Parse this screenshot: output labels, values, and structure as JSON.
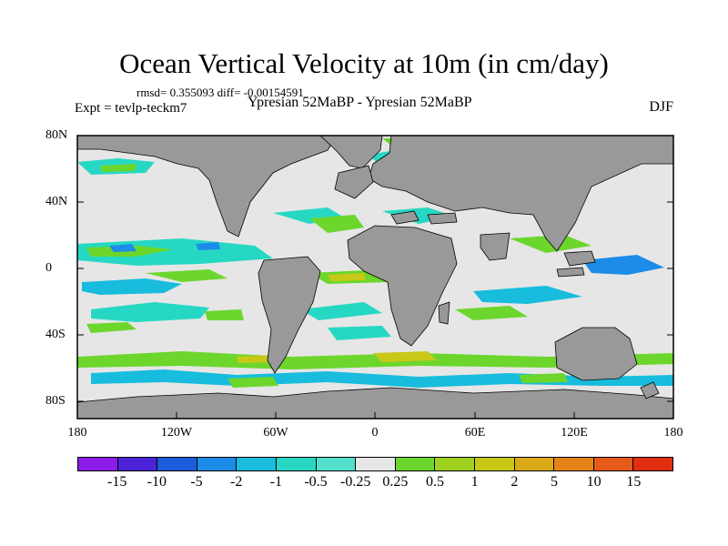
{
  "title": "Ocean Vertical Velocity at 10m (in cm/day)",
  "stats": "rmsd= 0.355093 diff= -0.00154591",
  "experiment": "Expt = tevlp-teckm7",
  "subtitle": "Ypresian  52MaBP - Ypresian  52MaBP",
  "season": "DJF",
  "y_axis": {
    "ticks": [
      "80N",
      "40N",
      "0",
      "40S",
      "80S"
    ]
  },
  "x_axis": {
    "ticks": [
      "180",
      "120W",
      "60W",
      "0",
      "60E",
      "120E",
      "180"
    ]
  },
  "colorbar": {
    "colors": [
      "#8c1ce8",
      "#4a22d8",
      "#1c5cdc",
      "#1c8ce8",
      "#18bcdc",
      "#26d8c4",
      "#52e0cc",
      "#e6e6e6",
      "#6cd62c",
      "#a0d020",
      "#c8c818",
      "#dcaa18",
      "#e48418",
      "#e45a18",
      "#e02e10"
    ],
    "labels": [
      "-15",
      "-10",
      "-5",
      "-2",
      "-1",
      "-0.5",
      "-0.25",
      "0.25",
      "0.5",
      "1",
      "2",
      "5",
      "10",
      "15"
    ]
  },
  "map_colors": {
    "ocean": "#e6e6e6",
    "land": "#999999",
    "frame": "#000000"
  }
}
